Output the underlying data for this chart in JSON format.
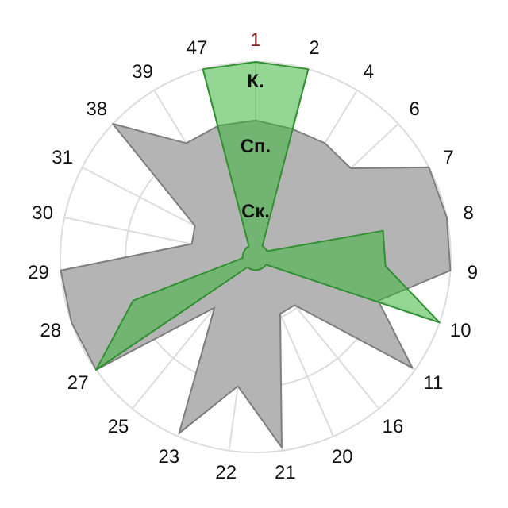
{
  "chart_data": {
    "type": "radar",
    "categories": [
      "1",
      "2",
      "4",
      "6",
      "7",
      "8",
      "9",
      "10",
      "11",
      "16",
      "20",
      "21",
      "22",
      "23",
      "25",
      "27",
      "28",
      "29",
      "30",
      "31",
      "38",
      "39",
      "47"
    ],
    "series": [
      {
        "color": "#b4b4b4",
        "values": [
          2.1,
          2.05,
          2.05,
          2.0,
          3.0,
          3.0,
          3.0,
          2.0,
          2.95,
          0.95,
          0.95,
          2.95,
          2.0,
          2.95,
          1.0,
          3.0,
          3.0,
          3.0,
          1.0,
          1.05,
          3.0,
          2.05,
          2.1
        ]
      },
      {
        "color": "#3cb43c",
        "values": [
          3.0,
          3.0,
          0.2,
          0.2,
          0.2,
          2.0,
          2.0,
          3.0,
          0.2,
          0.2,
          0.2,
          0.2,
          0.2,
          0.2,
          0.2,
          3.0,
          2.0,
          0.2,
          0.2,
          0.2,
          0.2,
          0.2,
          3.0
        ]
      }
    ],
    "ylim": [
      0,
      3
    ],
    "yticks": [
      {
        "value": 1,
        "label": "Ск."
      },
      {
        "value": 2,
        "label": "Сп."
      },
      {
        "value": 3,
        "label": "К."
      }
    ],
    "grid": true
  }
}
